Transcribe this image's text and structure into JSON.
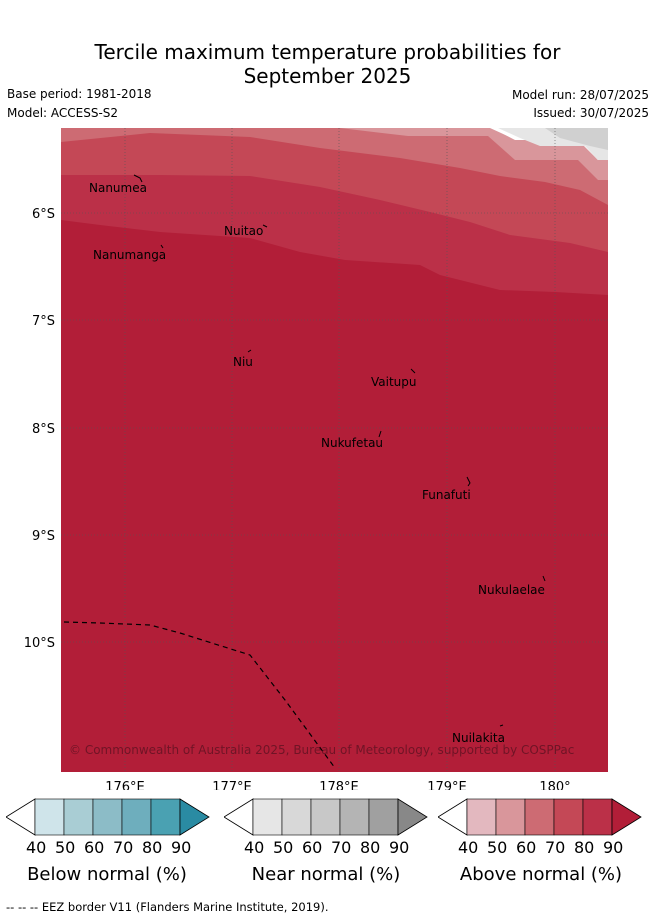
{
  "title": {
    "line1": "Tercile maximum temperature probabilities for",
    "line2": "September 2025"
  },
  "meta": {
    "base_period": "Base period: 1981-2018",
    "model": "Model: ACCESS-S2",
    "model_run": "Model run: 28/07/2025",
    "issued": "Issued: 30/07/2025"
  },
  "map": {
    "lat_labels": [
      "6°S",
      "7°S",
      "8°S",
      "9°S",
      "10°S"
    ],
    "lon_labels": [
      "176°E",
      "177°E",
      "178°E",
      "179°E",
      "180°"
    ],
    "places": [
      "Nanumea",
      "Nuitao",
      "Nanumanga",
      "Niu",
      "Vaitupu",
      "Nukufetau",
      "Funafuti",
      "Nukulaelae",
      "Nuilakita"
    ],
    "copyright": "© Commonwealth of Australia 2025, Bureau of Meteorology, supported by COSPPac",
    "colors": {
      "above_90": "#b21e38",
      "above_80": "#bb3048",
      "above_70": "#c44856",
      "above_60": "#cd6b73",
      "above_50": "#d9969b",
      "near_50": "#d8d8d8",
      "near_40": "#e6e6e6"
    }
  },
  "legend": {
    "below": {
      "title": "Below normal (%)",
      "ticks": [
        "40",
        "50",
        "60",
        "70",
        "80",
        "90"
      ],
      "colors": [
        "#cfe4ea",
        "#a9cdd4",
        "#8cbcc7",
        "#6eaebd",
        "#4aa1b2",
        "#2a8ba3"
      ]
    },
    "near": {
      "title": "Near normal (%)",
      "ticks": [
        "40",
        "50",
        "60",
        "70",
        "80",
        "90"
      ],
      "colors": [
        "#e6e6e6",
        "#d8d8d8",
        "#c8c8c8",
        "#b4b4b4",
        "#a0a0a0",
        "#888888"
      ]
    },
    "above": {
      "title": "Above normal (%)",
      "ticks": [
        "40",
        "50",
        "60",
        "70",
        "80",
        "90"
      ],
      "colors": [
        "#e3b8bf",
        "#d9969b",
        "#cd6b73",
        "#c44856",
        "#bb3048",
        "#b21e38"
      ]
    }
  },
  "footnote": "--  --  -- EEZ border V11 (Flanders Marine Institute, 2019)."
}
